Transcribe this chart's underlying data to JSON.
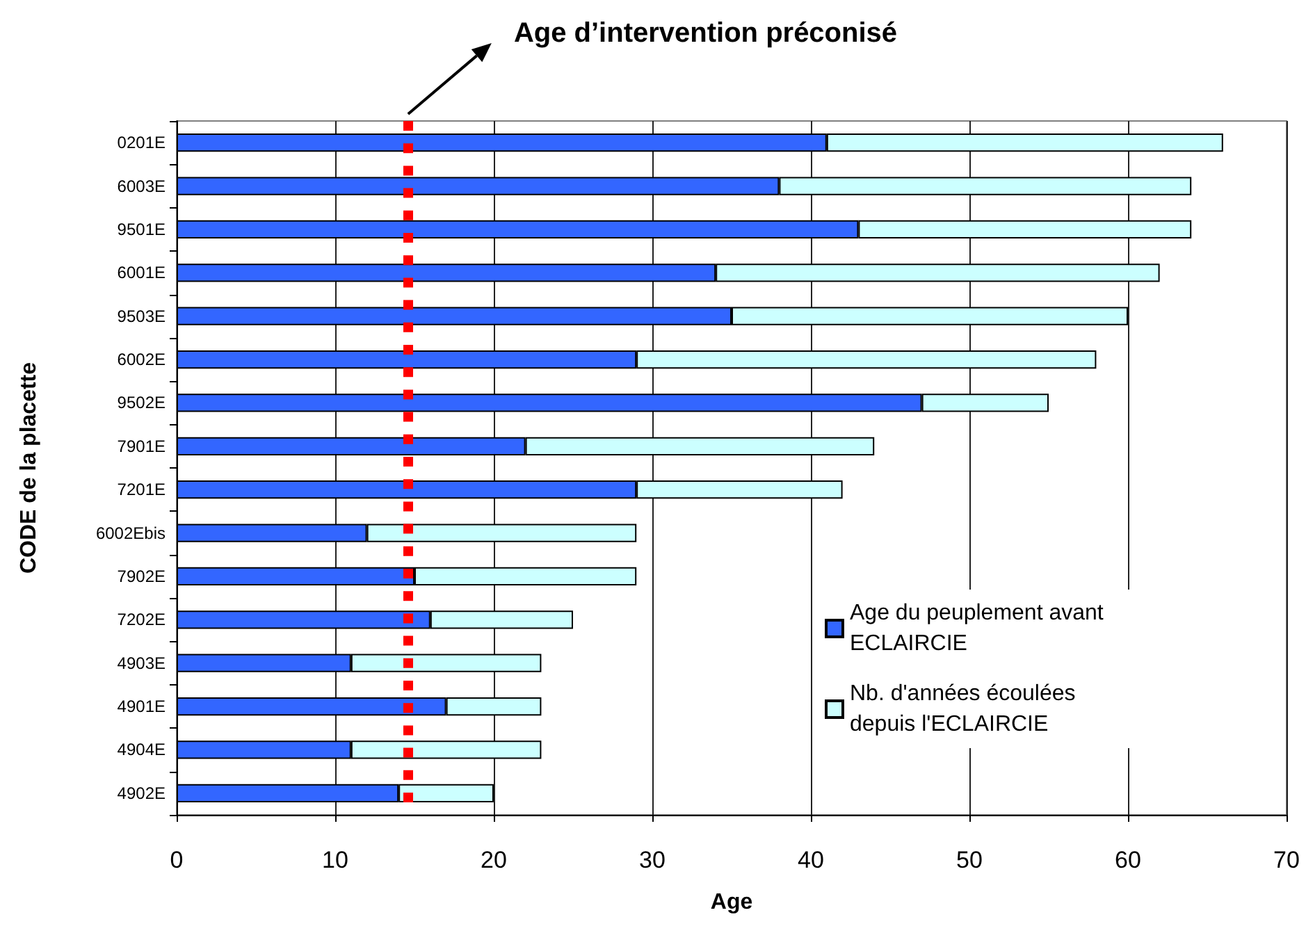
{
  "chart_data": {
    "type": "bar",
    "orientation": "horizontal",
    "stacked": true,
    "xlabel": "Age",
    "ylabel": "CODE de la placette",
    "categories": [
      "0201E",
      "6003E",
      "9501E",
      "6001E",
      "9503E",
      "6002E",
      "9502E",
      "7901E",
      "7201E",
      "6002Ebis",
      "7902E",
      "7202E",
      "4903E",
      "4901E",
      "4904E",
      "4902E"
    ],
    "series": [
      {
        "name": "Age du peuplement avant ECLAIRCIE",
        "color": "#3366ff",
        "values": [
          41,
          38,
          43,
          34,
          35,
          29,
          47,
          22,
          29,
          12,
          15,
          16,
          11,
          17,
          11,
          14
        ]
      },
      {
        "name": "Nb. d'années écoulées depuis l'ECLAIRCIE",
        "color": "#ccffff",
        "values": [
          25,
          26,
          21,
          28,
          25,
          29,
          8,
          22,
          13,
          17,
          14,
          9,
          12,
          6,
          12,
          6
        ]
      }
    ],
    "xlim": [
      0,
      70
    ],
    "xticks": [
      0,
      10,
      20,
      30,
      40,
      50,
      60,
      70
    ],
    "grid": "x",
    "legend": "bottom right",
    "ref_lines": [
      {
        "axis": "x",
        "value": 14.6,
        "color": "#ff0000",
        "line_style": "dotted"
      }
    ],
    "annotations": [
      "Age d’intervention préconisé"
    ]
  }
}
